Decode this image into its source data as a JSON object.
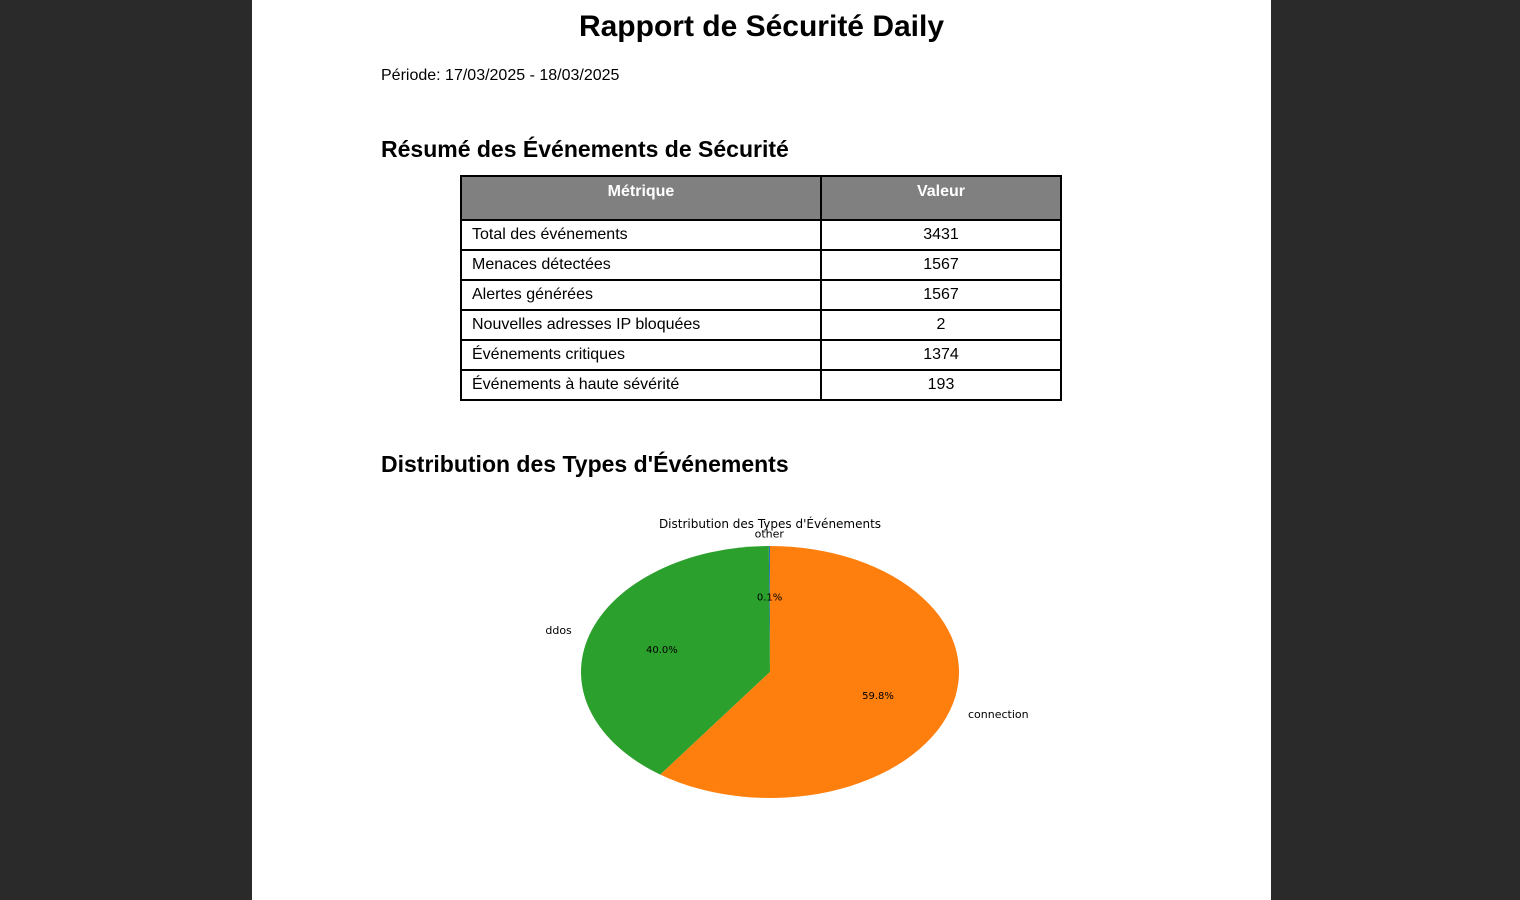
{
  "report": {
    "title": "Rapport de Sécurité Daily",
    "period_label": "Période:",
    "period_value": "17/03/2025 - 18/03/2025"
  },
  "summary": {
    "heading": "Résumé des Événements de Sécurité",
    "table": {
      "headers": [
        "Métrique",
        "Valeur"
      ],
      "rows": [
        [
          "Total des événements",
          "3431"
        ],
        [
          "Menaces détectées",
          "1567"
        ],
        [
          "Alertes générées",
          "1567"
        ],
        [
          "Nouvelles adresses IP bloquées",
          "2"
        ],
        [
          "Événements critiques",
          "1374"
        ],
        [
          "Événements à haute sévérité",
          "193"
        ]
      ]
    }
  },
  "distribution": {
    "heading": "Distribution des Types d'Événements"
  },
  "chart_data": {
    "type": "pie",
    "title": "Distribution des Types d'Événements",
    "slices": [
      {
        "label": "other",
        "percent": 0.1,
        "pct_label": "0.1%",
        "color": "#1f77b4"
      },
      {
        "label": "ddos",
        "percent": 40.0,
        "pct_label": "40.0%",
        "color": "#2ca02c"
      },
      {
        "label": "connection",
        "percent": 59.8,
        "pct_label": "59.8%",
        "color": "#ff7f0e"
      }
    ]
  }
}
